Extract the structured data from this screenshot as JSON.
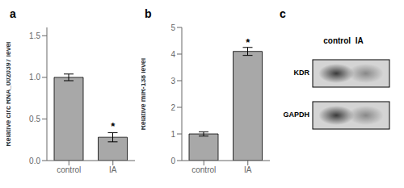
{
  "chart_data": [
    {
      "type": "bar",
      "title": "a",
      "categories": [
        "control",
        "IA"
      ],
      "values": [
        1.0,
        0.28
      ],
      "errors": [
        0.04,
        0.055
      ],
      "color": "#a8a8a8",
      "ylabel": "Relative circ RNA_0020397 level",
      "ylim": [
        0,
        1.6
      ],
      "yticks": [
        {
          "value": 0,
          "label": "0.0"
        },
        0.5,
        {
          "value": 1,
          "label": "1.0"
        },
        1.5
      ],
      "annotations": [
        {
          "text": "*",
          "x": "IA",
          "y": 0.36
        }
      ],
      "grid": false
    },
    {
      "type": "bar",
      "title": "b",
      "categories": [
        "control",
        "IA"
      ],
      "values": [
        1.0,
        4.1
      ],
      "errors": [
        0.08,
        0.15
      ],
      "color": "#a8a8a8",
      "ylabel": "Relative miR-138 level",
      "ylim": [
        0,
        5
      ],
      "yticks": [
        0,
        1,
        2,
        3,
        4,
        5
      ],
      "annotations": [
        {
          "text": "*",
          "x": "IA",
          "y": 4.28
        }
      ],
      "grid": false
    },
    {
      "type": "blot",
      "title": "c",
      "subtitle": "control  IA",
      "categories": [
        "KDR",
        "GAPDH"
      ],
      "color": "#d4d4d4",
      "colors": [
        "#3a3a3a",
        "#888888"
      ]
    }
  ]
}
